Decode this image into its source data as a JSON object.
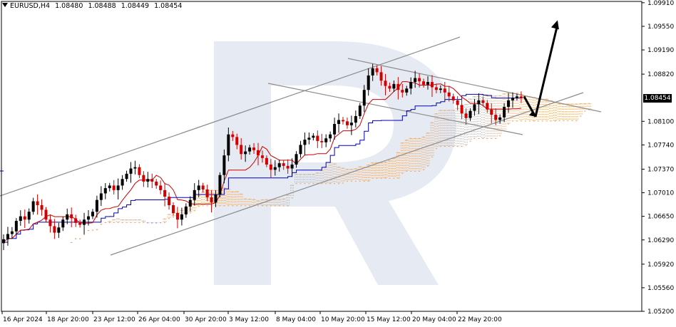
{
  "header": {
    "symbol": "EURUSD,H4",
    "open": "1.08480",
    "high": "1.08488",
    "low": "1.08449",
    "close": "1.08454"
  },
  "current_price_label": "1.08454",
  "colors": {
    "bull": "#000000",
    "bear": "#d40000",
    "tenkan": "#cc0000",
    "kijun": "#0000bb",
    "cloud": "#e8a15a",
    "cloud_alt": "#b09ad6",
    "channel": "#8c8c8c",
    "arrow": "#000000",
    "watermark": "#e6eaf2"
  },
  "chart_data": {
    "type": "candlestick",
    "symbol": "EURUSD",
    "timeframe": "H4",
    "ylim": [
      1.052,
      1.0993
    ],
    "y_ticks": [
      "1.09910",
      "1.09550",
      "1.09190",
      "1.08820",
      "1.08454",
      "1.08100",
      "1.07740",
      "1.07370",
      "1.07010",
      "1.06650",
      "1.06290",
      "1.05920",
      "1.05560",
      "1.05200"
    ],
    "x_ticks": [
      "16 Apr 2024",
      "18 Apr 20:00",
      "23 Apr 12:00",
      "26 Apr 04:00",
      "30 Apr 20:00",
      "3 May 12:00",
      "8 May 04:00",
      "10 May 20:00",
      "15 May 12:00",
      "20 May 04:00",
      "22 May 20:00"
    ],
    "closes": [
      1.063,
      1.0638,
      1.0642,
      1.0658,
      1.0665,
      1.066,
      1.0672,
      1.0688,
      1.0682,
      1.0675,
      1.066,
      1.065,
      1.064,
      1.0648,
      1.066,
      1.0668,
      1.0662,
      1.0655,
      1.0652,
      1.066,
      1.0665,
      1.0672,
      1.069,
      1.07,
      1.0708,
      1.0712,
      1.0705,
      1.0712,
      1.0722,
      1.073,
      1.0738,
      1.074,
      1.0728,
      1.0718,
      1.0722,
      1.0718,
      1.0712,
      1.0705,
      1.0695,
      1.0682,
      1.067,
      1.066,
      1.0668,
      1.068,
      1.069,
      1.0705,
      1.0712,
      1.0706,
      1.0694,
      1.0686,
      1.0698,
      1.0728,
      1.0758,
      1.079,
      1.0786,
      1.0774,
      1.076,
      1.0764,
      1.077,
      1.0766,
      1.0758,
      1.0754,
      1.0744,
      1.0736,
      1.074,
      1.0746,
      1.0742,
      1.0738,
      1.0744,
      1.076,
      1.0774,
      1.0782,
      1.0785,
      1.0788,
      1.078,
      1.0778,
      1.0784,
      1.079,
      1.0806,
      1.0812,
      1.081,
      1.0804,
      1.0808,
      1.0818,
      1.0834,
      1.0858,
      1.088,
      1.0891,
      1.0885,
      1.0872,
      1.0864,
      1.086,
      1.0867,
      1.0858,
      1.0854,
      1.086,
      1.087,
      1.0876,
      1.0871,
      1.0866,
      1.087,
      1.0862,
      1.0858,
      1.086,
      1.0854,
      1.0848,
      1.0842,
      1.0835,
      1.0822,
      1.0815,
      1.0826,
      1.0836,
      1.0842,
      1.0838,
      1.0828,
      1.082,
      1.0812,
      1.0816,
      1.0832,
      1.0842,
      1.0846,
      1.0848,
      1.0845
    ],
    "annotations": [
      {
        "type": "trend_channel",
        "direction": "up"
      },
      {
        "type": "trend_channel",
        "direction": "down"
      },
      {
        "type": "forecast_arrow",
        "direction": "down_then_up",
        "from": 1.0848,
        "dip": 1.0817,
        "target": 1.096
      }
    ],
    "indicators": [
      "Ichimoku Kinko Hyo"
    ],
    "watermark": "R"
  }
}
